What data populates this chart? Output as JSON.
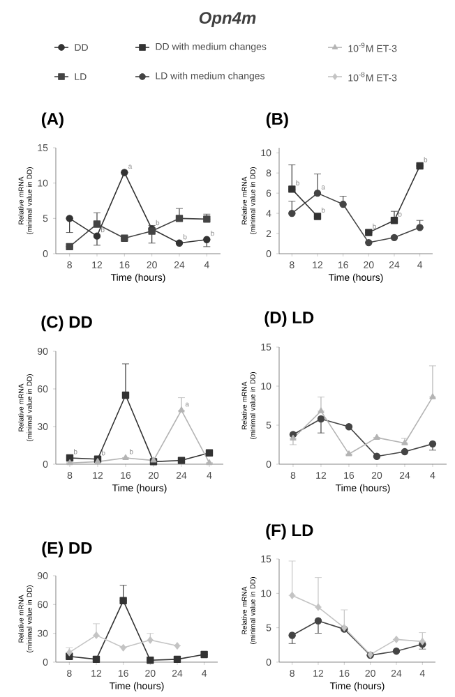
{
  "chart_data": [
    {
      "type": "line",
      "title": "(A)",
      "xlabel": "Time (hours)",
      "ylabel": "Relative mRNA (minimal value in DD)",
      "categories": [
        "8",
        "12",
        "16",
        "20",
        "24",
        "4"
      ],
      "ylim": [
        0,
        15
      ],
      "yticks": [
        0,
        5,
        10,
        15
      ],
      "legend": "top",
      "annotations": [
        "Opn4m",
        {
          "text": "a",
          "x": "16",
          "y": 11.5
        },
        {
          "text": "b",
          "x": "12",
          "y": 2.5
        },
        {
          "text": "b",
          "x": "20",
          "y": 3.5
        },
        {
          "text": "b",
          "x": "24",
          "y": 1.5
        },
        {
          "text": "b",
          "x": "4",
          "y": 2.0
        }
      ],
      "series": [
        {
          "name": "DD",
          "color": "#333333",
          "marker": "circle",
          "values": [
            5.0,
            2.5,
            11.5,
            3.5,
            1.5,
            2.0
          ],
          "errors": [
            [
              3.0,
              5.0
            ],
            [
              1.2,
              2.5
            ],
            null,
            [
              1.5,
              3.5
            ],
            null,
            [
              1.0,
              2.0
            ]
          ]
        },
        {
          "name": "LD",
          "color": "#444444",
          "marker": "square",
          "values": [
            1.0,
            4.2,
            2.2,
            3.2,
            5.0,
            4.9
          ],
          "errors": [
            null,
            [
              4.2,
              5.8
            ],
            null,
            [
              3.2,
              4.0
            ],
            [
              5.0,
              6.4
            ],
            [
              4.9,
              5.6
            ]
          ]
        }
      ]
    },
    {
      "type": "line",
      "title": "(B)",
      "xlabel": "Time (hours)",
      "ylabel": "Relative mRNA (minimal value in DD)",
      "categories": [
        "8",
        "12",
        "16",
        "20",
        "24",
        "4"
      ],
      "ylim": [
        0,
        10.5
      ],
      "yticks": [
        0,
        2,
        4,
        6,
        8,
        10
      ],
      "legend": "top",
      "annotations": [
        {
          "text": "b",
          "x": "8",
          "y": 6.4
        },
        {
          "text": "a",
          "x": "12",
          "y": 6.0
        },
        {
          "text": "b",
          "x": "12",
          "y": 3.7
        },
        {
          "text": "b",
          "x": "20",
          "y": 2.1
        },
        {
          "text": "b",
          "x": "24",
          "y": 3.3
        },
        {
          "text": "b",
          "x": "4",
          "y": 8.7
        }
      ],
      "series": [
        {
          "name": "DD with medium changes",
          "color": "#333333",
          "marker": "square",
          "values": [
            6.4,
            3.7,
            null,
            2.1,
            3.3,
            8.7
          ],
          "errors": [
            [
              6.4,
              8.8
            ],
            null,
            null,
            null,
            [
              3.3,
              4.2
            ],
            null
          ]
        },
        {
          "name": "LD with medium changes",
          "color": "#444444",
          "marker": "circle",
          "values": [
            4.0,
            6.0,
            4.9,
            1.1,
            1.6,
            2.6
          ],
          "errors": [
            [
              4.0,
              5.2
            ],
            [
              6.0,
              7.9
            ],
            [
              4.9,
              5.7
            ],
            null,
            null,
            [
              2.6,
              3.3
            ]
          ]
        }
      ]
    },
    {
      "type": "line",
      "title": "(C) DD",
      "xlabel": "Time (hours)",
      "ylabel": "Relative mRNA (minimal value in DD)",
      "categories": [
        "8",
        "12",
        "16",
        "20",
        "24",
        "4"
      ],
      "ylim": [
        0,
        90
      ],
      "yticks": [
        0,
        30,
        60,
        90
      ],
      "legend": "top",
      "annotations": [
        {
          "text": "b",
          "x": "8",
          "y": 5
        },
        {
          "text": "b",
          "x": "12",
          "y": 4
        },
        {
          "text": "b",
          "x": "16",
          "y": 5
        },
        {
          "text": "a",
          "x": "24",
          "y": 43
        }
      ],
      "series": [
        {
          "color": "#333333",
          "marker": "square",
          "values": [
            5,
            4,
            55,
            2,
            3,
            9
          ],
          "errors": [
            null,
            null,
            [
              55,
              80
            ],
            null,
            null,
            null
          ]
        },
        {
          "name": "10$^{-9}$M ET-3",
          "color": "#b4b4b4",
          "marker": "triangle",
          "values": [
            1,
            2,
            5,
            3,
            43,
            1
          ],
          "errors": [
            null,
            null,
            null,
            null,
            [
              43,
              53
            ],
            null
          ]
        }
      ]
    },
    {
      "type": "line",
      "title": "(D) LD",
      "xlabel": "Time (hours)",
      "ylabel": "Relative mRNA (minimal value in DD)",
      "categories": [
        "8",
        "12",
        "16",
        "20",
        "24",
        "4"
      ],
      "ylim": [
        0,
        15
      ],
      "yticks": [
        0,
        5,
        10,
        15
      ],
      "series": [
        {
          "color": "#444444",
          "marker": "circle",
          "values": [
            3.8,
            5.8,
            4.8,
            1.0,
            1.6,
            2.6
          ],
          "errors": [
            null,
            [
              4.0,
              5.8
            ],
            null,
            null,
            null,
            [
              1.8,
              2.6
            ]
          ]
        },
        {
          "color": "#b4b4b4",
          "marker": "triangle",
          "values": [
            3.3,
            6.8,
            1.3,
            3.4,
            2.7,
            8.6
          ],
          "errors": [
            [
              2.5,
              3.3
            ],
            [
              6.8,
              8.6
            ],
            null,
            null,
            [
              2.7,
              3.3
            ],
            [
              8.6,
              12.6
            ]
          ]
        }
      ]
    },
    {
      "type": "line",
      "title": "(E) DD",
      "xlabel": "Time (hours)",
      "ylabel": "Relative mRNA (minimal value in DD)",
      "categories": [
        "8",
        "12",
        "16",
        "20",
        "24",
        "4"
      ],
      "ylim": [
        0,
        90
      ],
      "yticks": [
        0,
        30,
        60,
        90
      ],
      "legend": "top",
      "series": [
        {
          "color": "#333333",
          "marker": "square",
          "values": [
            6,
            3,
            64,
            2,
            3,
            8
          ],
          "errors": [
            null,
            null,
            [
              64,
              80
            ],
            null,
            null,
            null
          ]
        },
        {
          "name": "10$^{-8}$M ET-3",
          "color": "#c4c4c4",
          "marker": "diamond",
          "values": [
            10,
            28,
            15,
            23,
            17,
            null
          ],
          "errors": [
            [
              10,
              15
            ],
            [
              28,
              40
            ],
            null,
            [
              23,
              30
            ],
            null,
            null
          ]
        }
      ]
    },
    {
      "type": "line",
      "title": "(F) LD",
      "xlabel": "Time (hours)",
      "ylabel": "Relative mRNA (minimal value in DD)",
      "categories": [
        "8",
        "12",
        "16",
        "20",
        "24",
        "4"
      ],
      "ylim": [
        0,
        15
      ],
      "yticks": [
        0,
        5,
        10,
        15
      ],
      "series": [
        {
          "color": "#444444",
          "marker": "circle",
          "values": [
            3.9,
            6.0,
            4.8,
            1.0,
            1.6,
            2.6
          ],
          "errors": [
            [
              2.7,
              3.9
            ],
            [
              4.2,
              6.0
            ],
            null,
            null,
            null,
            [
              1.9,
              2.6
            ]
          ]
        },
        {
          "color": "#c4c4c4",
          "marker": "diamond",
          "values": [
            9.7,
            8.0,
            5.0,
            1.1,
            3.3,
            3.0
          ],
          "errors": [
            [
              9.7,
              14.7
            ],
            [
              8.0,
              12.3
            ],
            [
              5.0,
              7.6
            ],
            null,
            null,
            [
              3.0,
              4.3
            ]
          ]
        }
      ]
    }
  ]
}
